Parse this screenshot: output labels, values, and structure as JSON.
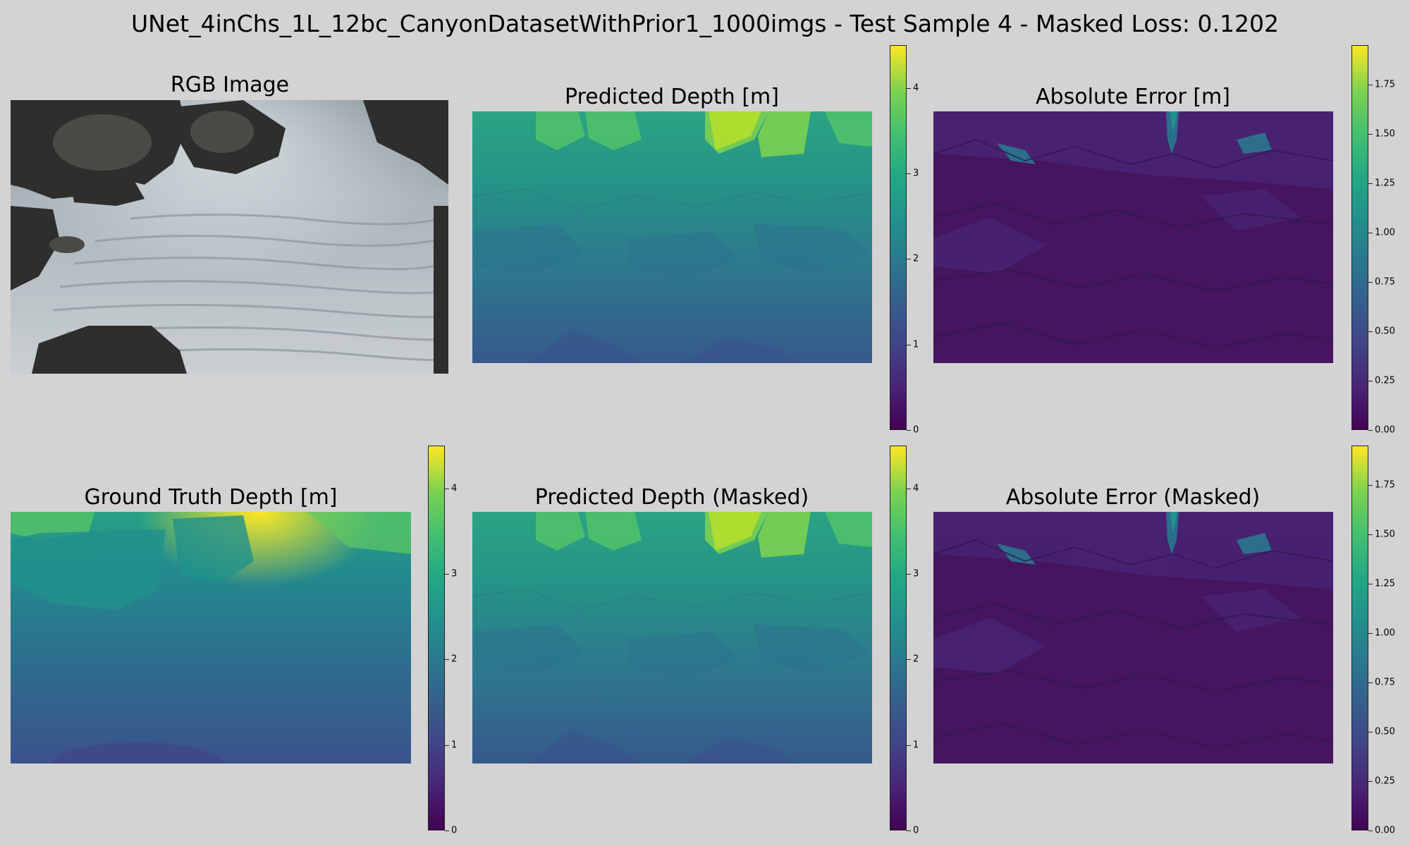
{
  "figure": {
    "title": "UNet_4inChs_1L_12bc_CanyonDatasetWithPrior1_1000imgs - Test Sample 4 - Masked Loss: 0.1202"
  },
  "panels": {
    "rgb_title": "RGB Image",
    "pred_title": "Predicted Depth [m]",
    "err_title": "Absolute Error [m]",
    "gt_title": "Ground Truth Depth [m]",
    "pred_masked_title": "Predicted Depth (Masked)",
    "err_masked_title": "Absolute Error (Masked)"
  },
  "chart_data": [
    {
      "type": "heatmap",
      "title": "Predicted Depth [m]",
      "colormap": "viridis",
      "clim": [
        0,
        4.5
      ],
      "colorbar_ticks": [
        "0",
        "1",
        "2",
        "3",
        "4"
      ]
    },
    {
      "type": "heatmap",
      "title": "Absolute Error [m]",
      "colormap": "viridis",
      "clim": [
        0,
        1.95
      ],
      "colorbar_ticks": [
        "0.00",
        "0.25",
        "0.50",
        "0.75",
        "1.00",
        "1.25",
        "1.50",
        "1.75"
      ]
    },
    {
      "type": "heatmap",
      "title": "Ground Truth Depth [m]",
      "colormap": "viridis",
      "clim": [
        0,
        4.5
      ],
      "colorbar_ticks": [
        "0",
        "1",
        "2",
        "3",
        "4"
      ]
    },
    {
      "type": "heatmap",
      "title": "Predicted Depth (Masked)",
      "colormap": "viridis",
      "clim": [
        0,
        4.5
      ],
      "colorbar_ticks": [
        "0",
        "1",
        "2",
        "3",
        "4"
      ]
    },
    {
      "type": "heatmap",
      "title": "Absolute Error (Masked)",
      "colormap": "viridis",
      "clim": [
        0,
        1.95
      ],
      "colorbar_ticks": [
        "0.00",
        "0.25",
        "0.50",
        "0.75",
        "1.00",
        "1.25",
        "1.50",
        "1.75"
      ]
    }
  ]
}
